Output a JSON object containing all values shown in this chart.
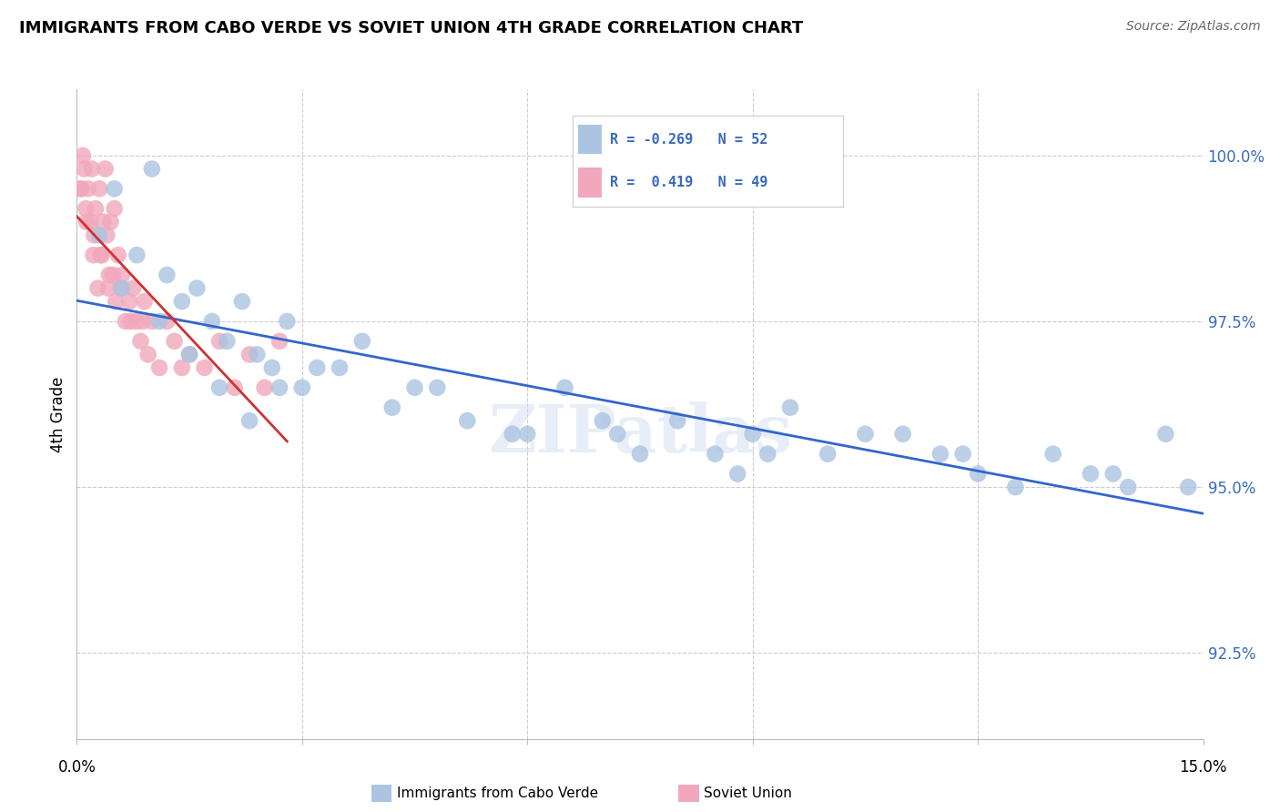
{
  "title": "IMMIGRANTS FROM CABO VERDE VS SOVIET UNION 4TH GRADE CORRELATION CHART",
  "source": "Source: ZipAtlas.com",
  "ylabel": "4th Grade",
  "xlim": [
    0.0,
    15.0
  ],
  "ylim": [
    91.2,
    101.0
  ],
  "yticks": [
    92.5,
    95.0,
    97.5,
    100.0
  ],
  "ytick_labels": [
    "92.5%",
    "95.0%",
    "97.5%",
    "100.0%"
  ],
  "xtick_positions": [
    0,
    3,
    6,
    9,
    12,
    15
  ],
  "cabo_verde_color": "#aac4e2",
  "soviet_union_color": "#f2a8bc",
  "cabo_verde_line_color": "#3366cc",
  "soviet_union_line_color": "#cc3333",
  "cabo_verde_R": -0.269,
  "cabo_verde_N": 52,
  "soviet_union_R": 0.419,
  "soviet_union_N": 49,
  "watermark": "ZIPatlas",
  "cabo_verde_x": [
    0.3,
    0.5,
    0.8,
    1.0,
    1.2,
    1.4,
    1.6,
    1.8,
    2.0,
    2.2,
    2.4,
    2.6,
    2.8,
    3.0,
    3.5,
    3.8,
    4.2,
    4.8,
    5.2,
    5.8,
    6.5,
    7.0,
    7.5,
    8.0,
    8.5,
    9.0,
    9.2,
    9.5,
    10.0,
    10.5,
    11.0,
    11.5,
    12.0,
    12.5,
    13.0,
    13.5,
    14.0,
    14.5,
    14.8,
    0.6,
    1.1,
    1.5,
    1.9,
    2.3,
    2.7,
    3.2,
    4.5,
    6.0,
    7.2,
    8.8,
    11.8,
    13.8
  ],
  "cabo_verde_y": [
    98.8,
    99.5,
    98.5,
    99.8,
    98.2,
    97.8,
    98.0,
    97.5,
    97.2,
    97.8,
    97.0,
    96.8,
    97.5,
    96.5,
    96.8,
    97.2,
    96.2,
    96.5,
    96.0,
    95.8,
    96.5,
    96.0,
    95.5,
    96.0,
    95.5,
    95.8,
    95.5,
    96.2,
    95.5,
    95.8,
    95.8,
    95.5,
    95.2,
    95.0,
    95.5,
    95.2,
    95.0,
    95.8,
    95.0,
    98.0,
    97.5,
    97.0,
    96.5,
    96.0,
    96.5,
    96.8,
    96.5,
    95.8,
    95.8,
    95.2,
    95.5,
    95.2
  ],
  "soviet_x": [
    0.05,
    0.08,
    0.1,
    0.12,
    0.15,
    0.18,
    0.2,
    0.22,
    0.25,
    0.28,
    0.3,
    0.32,
    0.35,
    0.38,
    0.4,
    0.42,
    0.45,
    0.48,
    0.5,
    0.52,
    0.55,
    0.6,
    0.65,
    0.7,
    0.75,
    0.8,
    0.85,
    0.9,
    0.95,
    1.0,
    1.1,
    1.2,
    1.3,
    1.5,
    1.7,
    1.9,
    2.1,
    2.3,
    2.5,
    2.7,
    0.06,
    0.13,
    0.23,
    0.33,
    0.43,
    0.58,
    0.72,
    0.88,
    1.4
  ],
  "soviet_y": [
    99.5,
    100.0,
    99.8,
    99.2,
    99.5,
    99.0,
    99.8,
    98.5,
    99.2,
    98.0,
    99.5,
    98.5,
    99.0,
    99.8,
    98.8,
    98.0,
    99.0,
    98.2,
    99.2,
    97.8,
    98.5,
    98.2,
    97.5,
    97.8,
    98.0,
    97.5,
    97.2,
    97.8,
    97.0,
    97.5,
    96.8,
    97.5,
    97.2,
    97.0,
    96.8,
    97.2,
    96.5,
    97.0,
    96.5,
    97.2,
    99.5,
    99.0,
    98.8,
    98.5,
    98.2,
    98.0,
    97.5,
    97.5,
    96.8
  ],
  "soviet_line_x_start": 0.0,
  "soviet_line_x_end": 2.8,
  "background_color": "#ffffff",
  "grid_color": "#cccccc",
  "axis_text_color": "#3a6abf",
  "legend_text_color": "#3a6abf"
}
